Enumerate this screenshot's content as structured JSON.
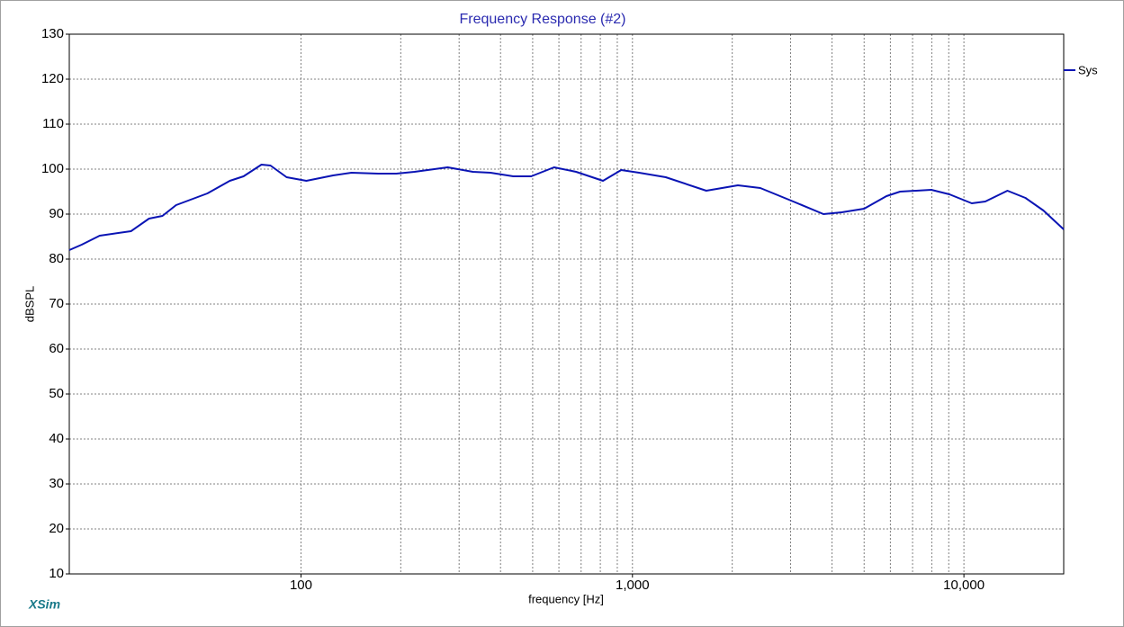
{
  "chart_data": {
    "type": "line",
    "title": "Frequency Response (#2)",
    "x_label": "frequency [Hz]",
    "y_label": "dBSPL",
    "footer": "XSim",
    "log_x": true,
    "grid": true,
    "xlim": [
      20,
      20000
    ],
    "ylim": [
      10,
      130
    ],
    "xticks": [
      100,
      {
        "value": 1000,
        "label": "1,000"
      },
      {
        "value": 10000,
        "label": "10,000"
      }
    ],
    "x_minor_grid": [
      200,
      300,
      400,
      500,
      600,
      700,
      800,
      900,
      2000,
      3000,
      4000,
      5000,
      6000,
      7000,
      8000,
      9000
    ],
    "yticks": [
      10,
      20,
      30,
      40,
      50,
      60,
      70,
      80,
      90,
      100,
      110,
      120,
      130
    ],
    "legend_position": "right",
    "x": [
      20,
      21.8,
      24.7,
      30.7,
      34.8,
      38.2,
      42,
      52.2,
      61,
      67.1,
      76,
      80.9,
      90.5,
      103.8,
      125,
      142,
      171,
      194,
      220,
      277,
      330,
      373,
      437,
      495,
      580,
      676,
      815,
      925,
      1047,
      1260,
      1670,
      2080,
      2430,
      3010,
      3770,
      4280,
      5000,
      5840,
      6420,
      7970,
      9040,
      10560,
      11600,
      13530,
      15330,
      17370,
      20000
    ],
    "series": [
      {
        "name": "Sys",
        "color": "#0a14b4",
        "values": [
          82,
          83.2,
          85.2,
          86.2,
          89,
          89.6,
          92,
          94.6,
          97.4,
          98.4,
          101,
          100.8,
          98.2,
          97.4,
          98.6,
          99.2,
          99,
          99,
          99.4,
          100.4,
          99.4,
          99.2,
          98.4,
          98.4,
          100.4,
          99.4,
          97.4,
          99.8,
          99.2,
          98.2,
          95.2,
          96.4,
          95.8,
          93,
          90,
          90.4,
          91.2,
          94,
          95,
          95.4,
          94.4,
          92.4,
          92.8,
          95.2,
          93.6,
          90.8,
          86.6
        ]
      }
    ]
  }
}
